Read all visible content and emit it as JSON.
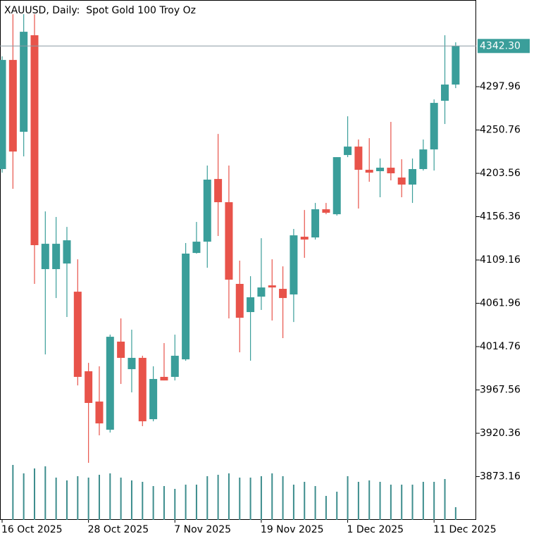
{
  "chart_data": {
    "type": "candlestick",
    "title": "XAUUSD, Daily:  Spot Gold 100 Troy Oz",
    "categories": [
      "16 Oct 2025",
      null,
      null,
      null,
      null,
      null,
      null,
      null,
      "28 Oct 2025",
      null,
      null,
      null,
      null,
      null,
      null,
      null,
      "7 Nov 2025",
      null,
      null,
      null,
      null,
      null,
      null,
      null,
      "19 Nov 2025",
      null,
      null,
      null,
      null,
      null,
      null,
      null,
      "1 Dec 2025",
      null,
      null,
      null,
      null,
      null,
      null,
      null,
      "11 Dec 2025",
      null,
      null
    ],
    "open": [
      4208.2,
      4327.1,
      4248.8,
      4354.0,
      4099.2,
      4099.2,
      4105.3,
      4074.6,
      3987.9,
      3954.9,
      3924.2,
      4020.2,
      3990.2,
      4002.5,
      3935.7,
      3981.8,
      3981.8,
      4000.9,
      4116.8,
      4129.1,
      4197.4,
      4172.1,
      4083.1,
      4052.4,
      4069.2,
      4081.5,
      4077.7,
      4071.6,
      4134.5,
      4133.7,
      4164.4,
      4159.0,
      4223.5,
      4232.7,
      4207.4,
      4205.9,
      4209.7,
      4199.0,
      4191.3,
      4208.2,
      4229.6,
      4282.6,
      4300.3
    ],
    "high": [
      4331.0,
      4377.0,
      4377.0,
      4377.0,
      4162.1,
      4156.0,
      4145.2,
      4109.9,
      3997.1,
      3993.3,
      4027.8,
      4045.5,
      4033.2,
      4004.8,
      3993.3,
      4018.6,
      4027.8,
      4127.6,
      4150.6,
      4212.0,
      4246.5,
      4212.0,
      4108.4,
      4091.5,
      4132.9,
      4109.9,
      4102.2,
      4143.0,
      4163.6,
      4171.3,
      4171.3,
      4221.2,
      4265.7,
      4240.4,
      4241.9,
      4219.7,
      4259.6,
      4218.9,
      4219.7,
      4240.4,
      4284.1,
      4354.0,
      4346.3
    ],
    "low": [
      4204.3,
      4186.7,
      4222.0,
      4083.1,
      4006.3,
      4067.7,
      4047.0,
      3972.5,
      3888.2,
      3918.1,
      3921.2,
      3974.1,
      3964.9,
      3928.1,
      3933.4,
      3977.9,
      3977.9,
      3999.4,
      4116.1,
      4100.7,
      4135.3,
      4045.5,
      4008.6,
      3999.4,
      4054.7,
      4043.2,
      4024.0,
      4041.6,
      4111.5,
      4131.4,
      4159.0,
      4157.5,
      4221.2,
      4165.2,
      4194.4,
      4177.5,
      4195.9,
      4177.5,
      4171.3,
      4206.6,
      4206.6,
      4257.3,
      4296.4
    ],
    "close": [
      4327.1,
      4227.3,
      4357.8,
      4125.3,
      4126.8,
      4126.8,
      4130.6,
      3981.8,
      3953.4,
      3931.1,
      4025.5,
      4002.5,
      4002.5,
      3933.4,
      3979.5,
      3977.9,
      4004.8,
      4116.1,
      4129.1,
      4196.7,
      4172.1,
      4087.7,
      4046.2,
      4068.5,
      4079.2,
      4079.2,
      4067.7,
      4136.0,
      4131.4,
      4164.4,
      4160.6,
      4221.2,
      4232.7,
      4207.4,
      4204.3,
      4209.7,
      4203.6,
      4191.3,
      4208.2,
      4229.6,
      4280.3,
      4300.3,
      4342.3
    ],
    "volume": [
      null,
      78,
      66,
      73,
      76,
      60,
      56,
      62,
      60,
      64,
      66,
      60,
      56,
      54,
      48,
      48,
      44,
      50,
      50,
      62,
      64,
      66,
      60,
      60,
      62,
      66,
      62,
      50,
      54,
      48,
      34,
      40,
      62,
      54,
      56,
      54,
      50,
      50,
      50,
      54,
      54,
      58,
      18
    ],
    "volume_lim": [
      0,
      100
    ],
    "up_color": "#3a9e9a",
    "down_color": "#e8534a",
    "volume_color": "#3d8d8d",
    "ylim": [
      3826.0,
      4392.4
    ],
    "yticks": [
      3873.16,
      3920.36,
      3967.56,
      4014.76,
      4061.96,
      4109.16,
      4156.36,
      4203.56,
      4250.76,
      4297.96
    ],
    "last_price": {
      "value": 4342.3,
      "label": "4342.30"
    }
  }
}
